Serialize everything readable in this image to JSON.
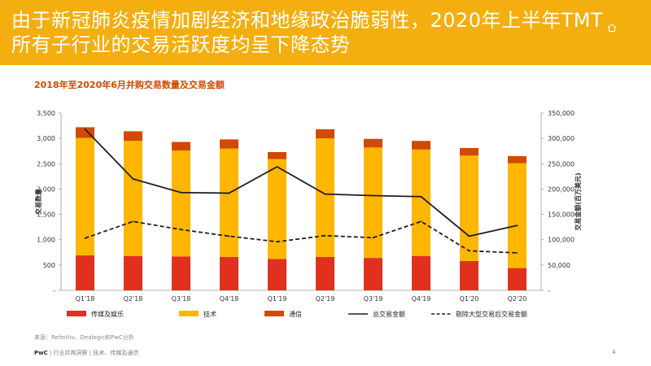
{
  "header": {
    "title": "由于新冠肺炎疫情加剧经济和地缘政治脆弱性，2020年上半年TMT所有子行业的交易活跃度均呈下降态势",
    "home_icon": "home-icon"
  },
  "chart_data": {
    "type": "bar",
    "stacked": true,
    "title": "2018年至2020年6月并购交易数量及交易金额",
    "categories": [
      "Q1'18",
      "Q2'18",
      "Q3'18",
      "Q4'18",
      "Q1'19",
      "Q2'19",
      "Q3'19",
      "Q4'19",
      "Q1'20",
      "Q2'20"
    ],
    "ylabel": "交易数量",
    "y2label": "交易金额(百万美元)",
    "ylim": [
      0,
      3500
    ],
    "y2lim": [
      0,
      350000
    ],
    "yticks": [
      "-",
      "500",
      "1,000",
      "1,500",
      "2,000",
      "2,500",
      "3,000",
      "3,500"
    ],
    "y2ticks": [
      "-",
      "50,000",
      "100,000",
      "150,000",
      "200,000",
      "250,000",
      "300,000",
      "350,000"
    ],
    "grid": false,
    "legend_position": "bottom",
    "series": [
      {
        "name": "传媒及娱乐",
        "kind": "bar",
        "color": "#e0301e",
        "values": [
          690,
          680,
          670,
          660,
          620,
          660,
          640,
          680,
          580,
          440
        ]
      },
      {
        "name": "技术",
        "kind": "bar",
        "color": "#ffb600",
        "values": [
          2320,
          2270,
          2090,
          2140,
          1970,
          2340,
          2180,
          2100,
          2080,
          2070
        ]
      },
      {
        "name": "通信",
        "kind": "bar",
        "color": "#d04a02",
        "values": [
          210,
          190,
          170,
          180,
          140,
          180,
          170,
          170,
          150,
          140
        ]
      },
      {
        "name": "总交易金额",
        "kind": "line",
        "axis": "right",
        "color": "#1f1f1f",
        "dash": "solid",
        "values": [
          318000,
          220000,
          193000,
          192000,
          244000,
          190000,
          187000,
          185000,
          107000,
          128000
        ]
      },
      {
        "name": "剔除大型交易后交易金额",
        "kind": "line",
        "axis": "right",
        "color": "#1f1f1f",
        "dash": "dashed",
        "values": [
          103000,
          136000,
          120000,
          107000,
          96000,
          108000,
          104000,
          136000,
          78000,
          74000
        ]
      }
    ]
  },
  "footer": {
    "source": "来源：Refinitiv、Dealogic和PwC分析",
    "brand": "PwC",
    "text": " | 行业并购洞察 | 技术、传媒及通信",
    "page": "4"
  }
}
